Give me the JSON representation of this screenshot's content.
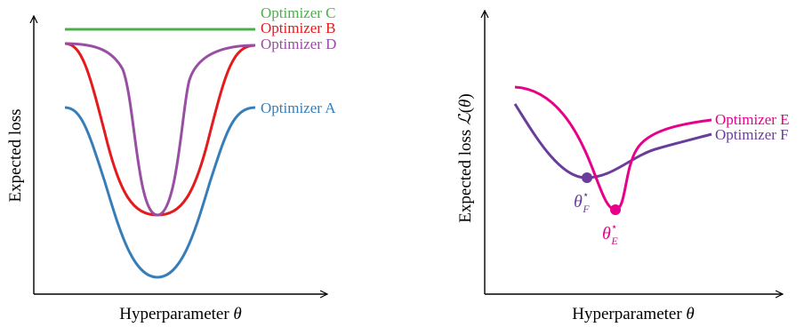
{
  "left_panel": {
    "x_axis_label": "Hyperparameter θ",
    "y_axis_label": "Expected loss",
    "series": [
      {
        "name": "Optimizer C",
        "color": "#4daf4a",
        "shape": "flat high line"
      },
      {
        "name": "Optimizer B",
        "color": "#e41a1c",
        "shape": "wide valley"
      },
      {
        "name": "Optimizer D",
        "color": "#984ea3",
        "shape": "narrow valley"
      },
      {
        "name": "Optimizer A",
        "color": "#377eb8",
        "shape": "deep valley"
      }
    ]
  },
  "right_panel": {
    "x_axis_label": "Hyperparameter θ",
    "y_axis_label": "Expected loss ℒ(θ)",
    "series": [
      {
        "name": "Optimizer E",
        "color": "#e7008a"
      },
      {
        "name": "Optimizer F",
        "color": "#6a3d9a"
      }
    ],
    "minima": [
      {
        "symbol": "θ",
        "superscript": "⋆",
        "subscript": "F",
        "color": "#6a3d9a"
      },
      {
        "symbol": "θ",
        "superscript": "⋆",
        "subscript": "E",
        "color": "#e7008a"
      }
    ]
  }
}
